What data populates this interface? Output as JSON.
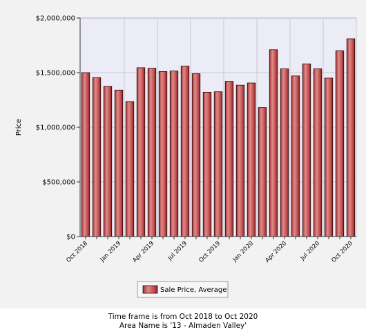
{
  "chart_data": {
    "type": "bar",
    "ylabel": "Price",
    "ylim": [
      0,
      2000000
    ],
    "yticks": [
      {
        "value": 0,
        "label": "$0"
      },
      {
        "value": 500000,
        "label": "$500,000"
      },
      {
        "value": 1000000,
        "label": "$1,000,000"
      },
      {
        "value": 1500000,
        "label": "$1,500,000"
      },
      {
        "value": 2000000,
        "label": "$2,000,000"
      }
    ],
    "categories": [
      "Oct 2018",
      "Nov 2018",
      "Dec 2018",
      "Jan 2019",
      "Feb 2019",
      "Mar 2019",
      "Apr 2019",
      "May 2019",
      "Jun 2019",
      "Jul 2019",
      "Aug 2019",
      "Sep 2019",
      "Oct 2019",
      "Nov 2019",
      "Dec 2019",
      "Jan 2020",
      "Feb 2020",
      "Mar 2020",
      "Apr 2020",
      "May 2020",
      "Jun 2020",
      "Jul 2020",
      "Aug 2020",
      "Sep 2020",
      "Oct 2020"
    ],
    "xtick_labels": [
      "Oct 2018",
      "",
      "",
      "Jan 2019",
      "",
      "",
      "Apr 2019",
      "",
      "",
      "Jul 2019",
      "",
      "",
      "Oct 2019",
      "",
      "",
      "Jan 2020",
      "",
      "",
      "Apr 2020",
      "",
      "",
      "Jul 2020",
      "",
      "",
      "Oct 2020"
    ],
    "series": [
      {
        "name": "Sale Price, Average",
        "values": [
          1500000,
          1455000,
          1375000,
          1340000,
          1235000,
          1545000,
          1540000,
          1510000,
          1515000,
          1560000,
          1490000,
          1320000,
          1325000,
          1420000,
          1385000,
          1405000,
          1180000,
          1710000,
          1535000,
          1470000,
          1580000,
          1535000,
          1450000,
          1700000,
          1810000
        ]
      }
    ],
    "grid": true,
    "legend": "bottom",
    "colors": {
      "bar_fill": "#c95656",
      "bar_stroke": "#2a0a0a",
      "plot_bg": "#ececf6",
      "grid": "#c8c8d4"
    }
  },
  "captions": {
    "timeframe": "Time frame is from Oct 2018 to Oct 2020",
    "area": "Area Name is '13 - Almaden Valley'"
  }
}
